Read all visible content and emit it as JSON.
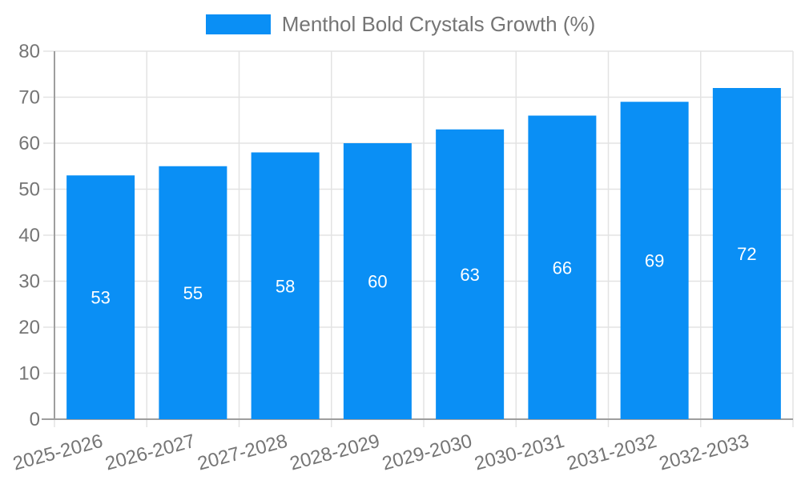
{
  "chart_data": {
    "type": "bar",
    "title": "Menthol Bold Crystals Growth (%)",
    "legend": {
      "label": "Menthol Bold Crystals Growth (%)",
      "position": "top-center"
    },
    "categories": [
      "2025-2026",
      "2026-2027",
      "2027-2028",
      "2028-2029",
      "2029-2030",
      "2030-2031",
      "2031-2032",
      "2032-2033"
    ],
    "values": [
      53,
      55,
      58,
      60,
      63,
      66,
      69,
      72
    ],
    "xlabel": "",
    "ylabel": "",
    "ylim": [
      0,
      80
    ],
    "yticks": [
      0,
      10,
      20,
      30,
      40,
      50,
      60,
      70,
      80
    ],
    "grid": true,
    "bar_value_labels_shown": true,
    "colors": {
      "bar": "#0a8ff5",
      "grid": "#e3e3e3",
      "axis": "#9e9e9e",
      "tick_text": "#757575",
      "title_text": "#757575",
      "bar_label_text": "#ffffff",
      "background": "#ffffff"
    }
  }
}
